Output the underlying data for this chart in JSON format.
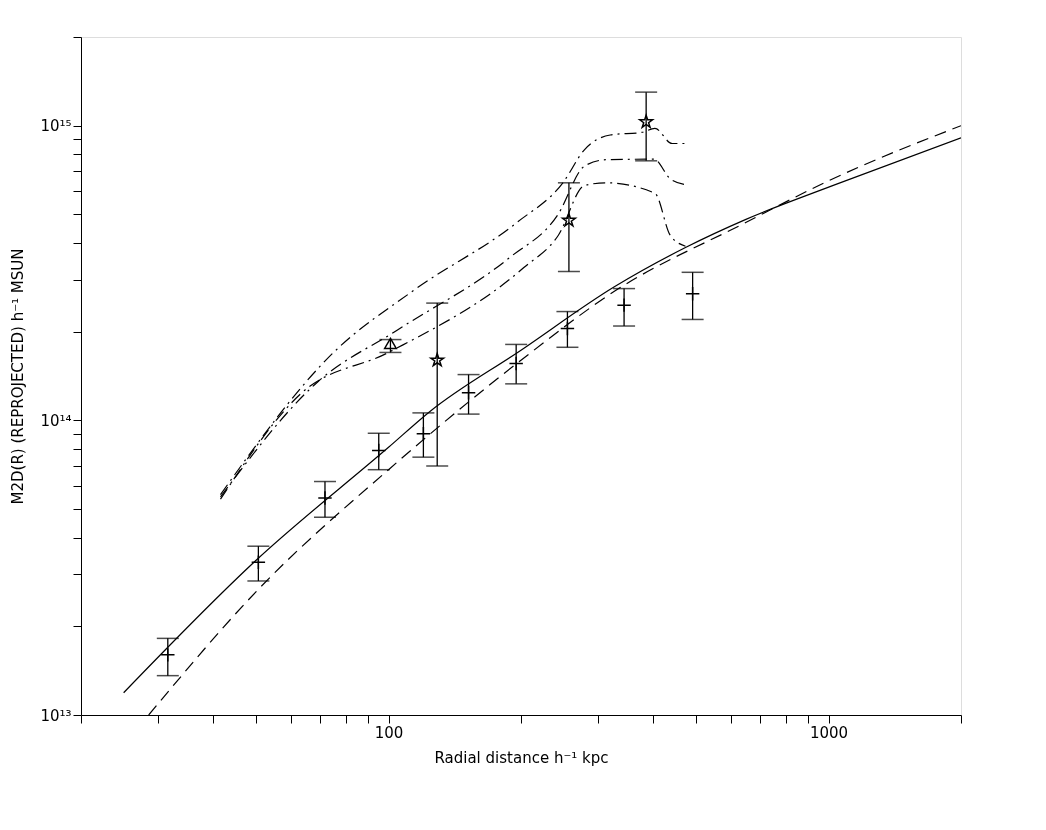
{
  "chart_data": {
    "type": "line",
    "xlabel": "Radial distance h⁻¹ kpc",
    "ylabel": "M2D(R) (REPROJECTED) h⁻¹ MSUN",
    "log": "xy",
    "grid": false,
    "xlim": [
      20,
      2000
    ],
    "ylim": [
      10000000000000.0,
      2000000000000000.0
    ],
    "xticks": [
      {
        "value": 20,
        "label": null
      },
      {
        "value": 30,
        "label": null
      },
      {
        "value": 40,
        "label": null
      },
      {
        "value": 50,
        "label": null
      },
      {
        "value": 60,
        "label": null
      },
      {
        "value": 70,
        "label": null
      },
      {
        "value": 80,
        "label": null
      },
      {
        "value": 90,
        "label": null
      },
      100,
      {
        "value": 200,
        "label": null
      },
      {
        "value": 300,
        "label": null
      },
      {
        "value": 400,
        "label": null
      },
      {
        "value": 500,
        "label": null
      },
      {
        "value": 600,
        "label": null
      },
      {
        "value": 700,
        "label": null
      },
      {
        "value": 800,
        "label": null
      },
      {
        "value": 900,
        "label": null
      },
      1000,
      {
        "value": 2000,
        "label": null
      }
    ],
    "yticks": [
      {
        "value": 10000000000000.0,
        "label": "10¹³"
      },
      {
        "value": 20000000000000.0,
        "label": null
      },
      {
        "value": 30000000000000.0,
        "label": null
      },
      {
        "value": 40000000000000.0,
        "label": null
      },
      {
        "value": 50000000000000.0,
        "label": null
      },
      {
        "value": 60000000000000.0,
        "label": null
      },
      {
        "value": 70000000000000.0,
        "label": null
      },
      {
        "value": 80000000000000.0,
        "label": null
      },
      {
        "value": 90000000000000.0,
        "label": null
      },
      {
        "value": 100000000000000.0,
        "label": "10¹⁴"
      },
      {
        "value": 200000000000000.0,
        "label": null
      },
      {
        "value": 300000000000000.0,
        "label": null
      },
      {
        "value": 400000000000000.0,
        "label": null
      },
      {
        "value": 500000000000000.0,
        "label": null
      },
      {
        "value": 600000000000000.0,
        "label": null
      },
      {
        "value": 700000000000000.0,
        "label": null
      },
      {
        "value": 800000000000000.0,
        "label": null
      },
      {
        "value": 900000000000000.0,
        "label": null
      },
      {
        "value": 1000000000000000.0,
        "label": "10¹⁵"
      },
      {
        "value": 2000000000000000.0,
        "label": null
      }
    ],
    "series": [
      {
        "color": "#000000",
        "line_style": "solid",
        "x": [
          25,
          50,
          100,
          124,
          200,
          326,
          473,
          647,
          1025,
          2000
        ],
        "values": [
          11900000000000.0,
          33500000000000.0,
          81000000000000.0,
          107000000000000.0,
          173000000000000.0,
          284000000000000.0,
          386000000000000.0,
          480000000000000.0,
          627000000000000.0,
          910000000000000.0
        ]
      },
      {
        "color": "#000000",
        "line_style": "dashed",
        "x": [
          28.5,
          50.6,
          100,
          200,
          326,
          650,
          1000,
          2000
        ],
        "values": [
          10000000000000.0,
          26700000000000.0,
          68000000000000.0,
          160000000000000.0,
          274000000000000.0,
          470000000000000.0,
          650000000000000.0,
          1000000000000000.0
        ]
      },
      {
        "color": "#000000",
        "line_style": "dashdot",
        "x": [
          41.5,
          75,
          114,
          196,
          249,
          279,
          319,
          378,
          403,
          441,
          473
        ],
        "values": [
          56000000000000.0,
          170000000000000.0,
          276000000000000.0,
          470000000000000.0,
          640000000000000.0,
          830000000000000.0,
          930000000000000.0,
          950000000000000.0,
          980000000000000.0,
          870000000000000.0,
          870000000000000.0
        ]
      },
      {
        "color": "#000000",
        "line_style": "dashdot",
        "x": [
          41.5,
          69,
          105,
          189,
          242,
          279,
          313,
          401,
          437,
          476
        ],
        "values": [
          55000000000000.0,
          135000000000000.0,
          203000000000000.0,
          358000000000000.0,
          496000000000000.0,
          730000000000000.0,
          767000000000000.0,
          770000000000000.0,
          660000000000000.0,
          630000000000000.0
        ]
      },
      {
        "color": "#000000",
        "line_style": "dashdot",
        "x": [
          41.5,
          63.5,
          100,
          203,
          243,
          279,
          313,
          403,
          437,
          473
        ],
        "values": [
          54000000000000.0,
          124000000000000.0,
          170000000000000.0,
          330000000000000.0,
          424000000000000.0,
          627000000000000.0,
          640000000000000.0,
          590000000000000.0,
          424000000000000.0,
          390000000000000.0
        ]
      },
      {
        "type": "scatter",
        "color": "#000000",
        "marker": "cross",
        "x": [
          31.5,
          50.6,
          71.7,
          95,
          120,
          152,
          195,
          255,
          343,
          491
        ],
        "values": [
          16000000000000.0,
          33000000000000.0,
          54500000000000.0,
          79000000000000.0,
          90000000000000.0,
          124000000000000.0,
          156000000000000.0,
          205000000000000.0,
          246000000000000.0,
          269000000000000.0
        ],
        "errors": [
          [
            13600000000000.0,
            18200000000000.0
          ],
          [
            28500000000000.0,
            37400000000000.0
          ],
          [
            46900000000000.0,
            62000000000000.0
          ],
          [
            68000000000000.0,
            90400000000000.0
          ],
          [
            75000000000000.0,
            106000000000000.0
          ],
          [
            105000000000000.0,
            143000000000000.0
          ],
          [
            133000000000000.0,
            181000000000000.0
          ],
          [
            177000000000000.0,
            234000000000000.0
          ],
          [
            209000000000000.0,
            280000000000000.0
          ],
          [
            220000000000000.0,
            318000000000000.0
          ]
        ]
      },
      {
        "type": "scatter",
        "color": "#000000",
        "marker": "star",
        "x": [
          129,
          257,
          385
        ],
        "values": [
          160000000000000.0,
          477000000000000.0,
          1030000000000000.0
        ],
        "errors": [
          [
            70000000000000.0,
            250000000000000.0
          ],
          [
            320000000000000.0,
            640000000000000.0
          ],
          [
            760000000000000.0,
            1300000000000000.0
          ]
        ]
      },
      {
        "type": "scatter",
        "color": "#000000",
        "marker": "triangle",
        "x": [
          101
        ],
        "values": [
          180000000000000.0
        ],
        "errors": [
          [
            170000000000000.0,
            188000000000000.0
          ]
        ]
      }
    ]
  }
}
